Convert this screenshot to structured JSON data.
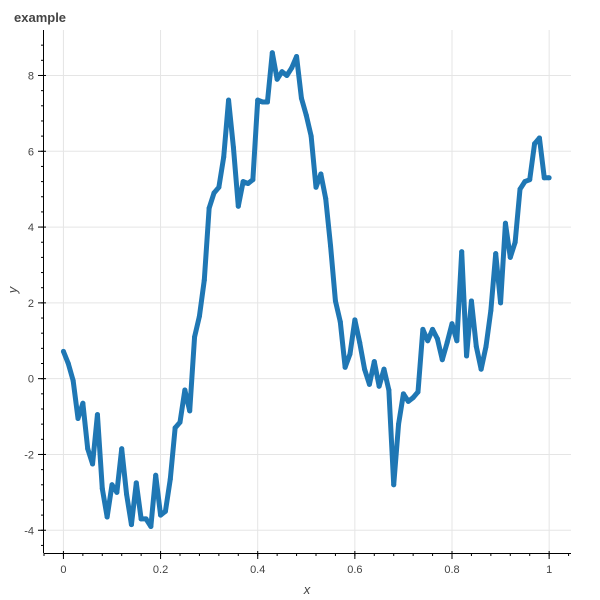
{
  "chart_data": {
    "type": "line",
    "title": "example",
    "xlabel": "x",
    "ylabel": "y",
    "xlim": [
      -0.04,
      1.045
    ],
    "ylim": [
      -4.6,
      9.2
    ],
    "x_ticks": [
      0,
      0.2,
      0.4,
      0.6,
      0.8,
      1
    ],
    "x_tick_labels": [
      "0",
      "0.2",
      "0.4",
      "0.6",
      "0.8",
      "1"
    ],
    "y_ticks": [
      -4,
      -2,
      0,
      2,
      4,
      6,
      8
    ],
    "y_tick_labels": [
      "-4",
      "-2",
      "0",
      "2",
      "4",
      "6",
      "8"
    ],
    "grid": true,
    "series": [
      {
        "color": "#1f77b4",
        "x": [
          0,
          0.01,
          0.02,
          0.03,
          0.04,
          0.05,
          0.06,
          0.07,
          0.08,
          0.09,
          0.1,
          0.11,
          0.12,
          0.13,
          0.14,
          0.15,
          0.16,
          0.17,
          0.18,
          0.19,
          0.2,
          0.21,
          0.22,
          0.23,
          0.24,
          0.25,
          0.26,
          0.27,
          0.28,
          0.29,
          0.3,
          0.31,
          0.32,
          0.33,
          0.34,
          0.35,
          0.36,
          0.37,
          0.38,
          0.39,
          0.4,
          0.41,
          0.42,
          0.43,
          0.44,
          0.45,
          0.46,
          0.47,
          0.48,
          0.49,
          0.5,
          0.51,
          0.52,
          0.53,
          0.54,
          0.55,
          0.56,
          0.57,
          0.58,
          0.59,
          0.6,
          0.61,
          0.62,
          0.63,
          0.64,
          0.65,
          0.66,
          0.67,
          0.68,
          0.69,
          0.7,
          0.71,
          0.72,
          0.73,
          0.74,
          0.75,
          0.76,
          0.77,
          0.78,
          0.79,
          0.8,
          0.81,
          0.82,
          0.83,
          0.84,
          0.85,
          0.86,
          0.87,
          0.88,
          0.89,
          0.9,
          0.91,
          0.92,
          0.93,
          0.94,
          0.95,
          0.96,
          0.97,
          0.98,
          0.99,
          1.0
        ],
        "y": [
          0.72,
          0.4,
          -0.05,
          -1.05,
          -0.65,
          -1.85,
          -2.25,
          -0.95,
          -2.9,
          -3.65,
          -2.8,
          -3.0,
          -1.85,
          -3.05,
          -3.85,
          -2.75,
          -3.7,
          -3.7,
          -3.9,
          -2.55,
          -3.6,
          -3.5,
          -2.65,
          -1.3,
          -1.15,
          -0.3,
          -0.85,
          1.1,
          1.65,
          2.6,
          4.5,
          4.9,
          5.05,
          5.85,
          7.35,
          6.1,
          4.55,
          5.2,
          5.15,
          5.25,
          7.35,
          7.3,
          7.3,
          8.6,
          7.9,
          8.1,
          8.0,
          8.2,
          8.5,
          7.4,
          6.95,
          6.4,
          5.05,
          5.4,
          4.75,
          3.5,
          2.05,
          1.5,
          0.3,
          0.65,
          1.55,
          0.95,
          0.25,
          -0.15,
          0.45,
          -0.2,
          0.25,
          -0.3,
          -2.8,
          -1.2,
          -0.4,
          -0.6,
          -0.5,
          -0.35,
          1.3,
          1.0,
          1.3,
          1.05,
          0.5,
          0.95,
          1.45,
          1.0,
          3.35,
          0.6,
          2.05,
          0.85,
          0.25,
          0.85,
          1.8,
          3.3,
          2.0,
          4.1,
          3.2,
          3.6,
          5.0,
          5.2,
          5.25,
          6.2,
          6.35,
          5.3,
          5.3
        ]
      }
    ]
  }
}
